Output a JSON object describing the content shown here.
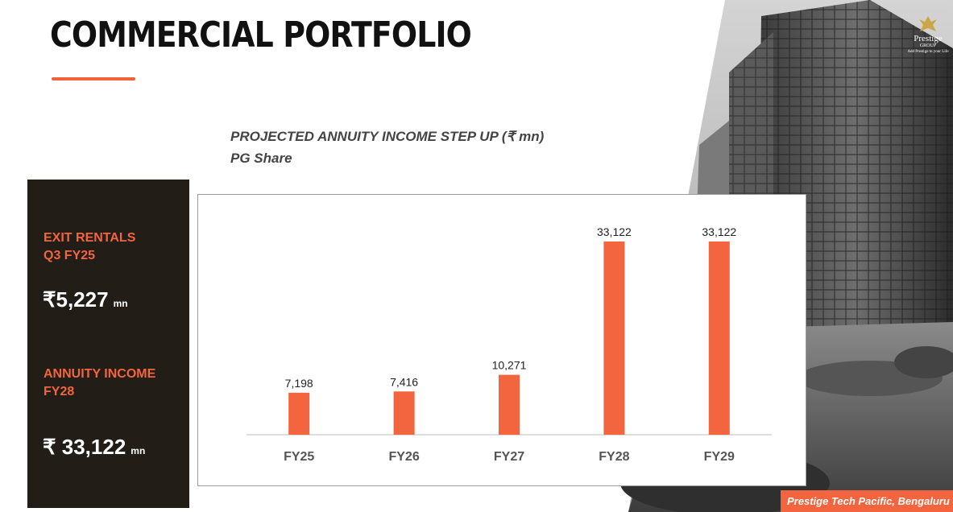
{
  "page": {
    "title": "COMMERCIAL PORTFOLIO",
    "chart_heading_line1": "PROJECTED  ANNUITY INCOME STEP UP (₹ mn)",
    "chart_heading_line2": "PG Share",
    "photo_caption": "Prestige Tech Pacific, Bengaluru"
  },
  "brand": {
    "logo_name": "Prestige",
    "logo_group": "GROUP",
    "logo_tagline": "Add Prestige to your Life",
    "accent_color": "#f2653e",
    "panel_color": "#221d16"
  },
  "sidebar": {
    "kpis": [
      {
        "label": "EXIT RENTALS\nQ3 FY25",
        "value": "₹5,227",
        "unit": "mn"
      },
      {
        "label": "ANNUITY INCOME\nFY28",
        "value": "₹ 33,122",
        "unit": "mn"
      }
    ]
  },
  "chart_data": {
    "type": "bar",
    "categories": [
      "FY25",
      "FY26",
      "FY27",
      "FY28",
      "FY29"
    ],
    "values": [
      7198,
      7416,
      10271,
      33122,
      33122
    ],
    "data_labels": [
      "7,198",
      "7,416",
      "10,271",
      "33,122",
      "33,122"
    ],
    "title": "PROJECTED  ANNUITY INCOME STEP UP (₹ mn)",
    "subtitle": "PG Share",
    "xlabel": "",
    "ylabel": "",
    "ylim": [
      0,
      40000
    ],
    "grid": false,
    "legend": "none",
    "bar_color": "#f2653e"
  }
}
